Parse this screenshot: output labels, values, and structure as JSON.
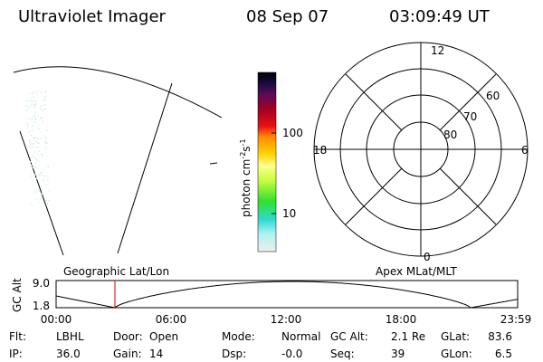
{
  "header": {
    "title": "Ultraviolet Imager",
    "date": "08 Sep 07",
    "time": "03:09:49 UT"
  },
  "colorbar": {
    "label": [
      "photon cm",
      "-2",
      "s",
      "-1"
    ],
    "ticks": [
      "100",
      "10"
    ]
  },
  "polar": {
    "hours": [
      "12",
      "0",
      "18",
      "6"
    ],
    "latitudes": [
      "60",
      "70",
      "80"
    ]
  },
  "altitude_panel": {
    "left_title": "Geographic Lat/Lon",
    "right_title": "Apex MLat/MLT",
    "axis_label": "GC Alt",
    "y_labels": [
      "9.0",
      "1.8"
    ],
    "x_labels": [
      "00:00",
      "06:00",
      "12:00",
      "18:00",
      "23:59"
    ]
  },
  "info": {
    "rows": [
      [
        {
          "label": "Flt:",
          "value": "LBHL"
        },
        {
          "label": "Door:",
          "value": "Open"
        },
        {
          "label": "Mode:",
          "value": "Normal"
        },
        {
          "label": "GC Alt:",
          "value": "2.1 Re"
        },
        {
          "label": "GLat:",
          "value": "83.6"
        }
      ],
      [
        {
          "label": "IP:",
          "value": "36.0"
        },
        {
          "label": "Gain:",
          "value": "14"
        },
        {
          "label": "Dsp:",
          "value": "-0.0"
        },
        {
          "label": "Seq:",
          "value": "39"
        },
        {
          "label": "GLon:",
          "value": "6.5"
        }
      ]
    ]
  }
}
